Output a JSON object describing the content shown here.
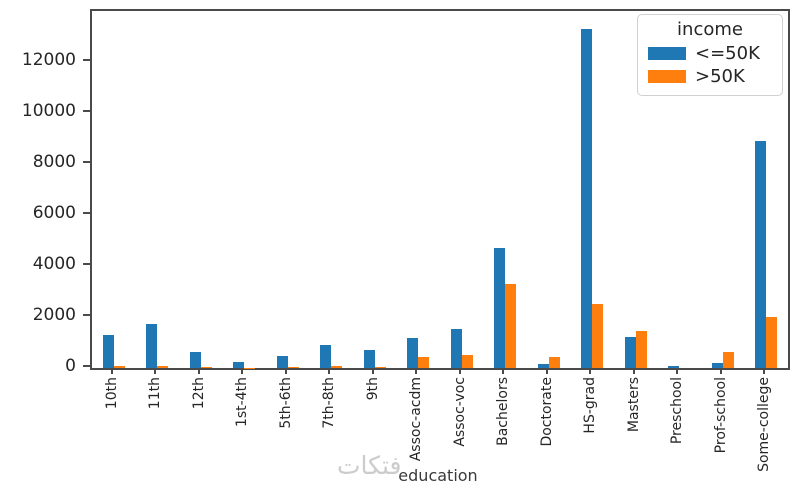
{
  "chart_data": {
    "type": "bar",
    "title": "",
    "xlabel": "education",
    "ylabel": "",
    "categories": [
      "10th",
      "11th",
      "12th",
      "1st-4th",
      "5th-6th",
      "7th-8th",
      "9th",
      "Assoc-acdm",
      "Assoc-voc",
      "Bachelors",
      "Doctorate",
      "HS-grad",
      "Masters",
      "Preschool",
      "Prof-school",
      "Some-college"
    ],
    "series": [
      {
        "name": "<=50K",
        "color": "#1f77b4",
        "values": [
          1302,
          1720,
          614,
          239,
          482,
          893,
          715,
          1188,
          1539,
          4712,
          163,
          13281,
          1198,
          82,
          212,
          8888
        ]
      },
      {
        "name": ">50K",
        "color": "#ff7f0e",
        "values": [
          87,
          92,
          43,
          8,
          27,
          62,
          41,
          413,
          522,
          3313,
          431,
          2503,
          1459,
          1,
          622,
          1990
        ]
      }
    ],
    "ylim": [
      0,
      14000
    ],
    "yticks": [
      0,
      2000,
      4000,
      6000,
      8000,
      10000,
      12000
    ],
    "grid": false,
    "x_tick_rotation": 90,
    "legend": {
      "title": "income",
      "position": "upper-right",
      "labels": [
        "<=50K",
        ">50K"
      ]
    }
  },
  "watermark": {
    "text": "فتكات",
    "color": "#cccccc"
  }
}
